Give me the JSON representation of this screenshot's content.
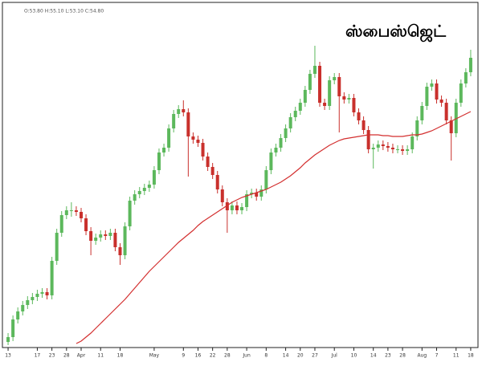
{
  "chart_data": {
    "type": "candlestick",
    "title": "ஸ்பைஸ்ஜெட்",
    "ohlc_readout": "O:53.80 H:55.10 L:53.10 C:54.80",
    "up_color": "#5cb85c",
    "down_color": "#c9302c",
    "open": [
      4,
      10,
      32,
      42,
      50,
      56,
      60,
      64,
      66,
      62,
      105,
      140,
      162,
      168,
      168,
      166,
      158,
      142,
      130,
      134,
      138,
      136,
      140,
      122,
      112,
      148,
      180,
      188,
      192,
      196,
      200,
      218,
      240,
      246,
      270,
      288,
      294,
      290,
      260,
      256,
      252,
      235,
      222,
      212,
      194,
      178,
      168,
      174,
      168,
      172,
      188,
      190,
      185,
      194,
      218,
      240,
      246,
      258,
      270,
      284,
      292,
      302,
      318,
      338,
      348,
      302,
      298,
      330,
      334,
      310,
      306,
      308,
      290,
      280,
      268,
      244,
      246,
      250,
      248,
      246,
      244,
      244,
      242,
      244,
      260,
      280,
      298,
      322,
      326,
      306,
      302,
      280,
      264,
      302,
      326,
      340
    ],
    "high": [
      15,
      37,
      47,
      55,
      61,
      65,
      69,
      71,
      71,
      110,
      145,
      167,
      173,
      178,
      173,
      171,
      163,
      147,
      139,
      143,
      143,
      145,
      145,
      127,
      153,
      185,
      193,
      197,
      201,
      205,
      223,
      245,
      251,
      275,
      293,
      299,
      305,
      295,
      265,
      261,
      257,
      240,
      227,
      217,
      199,
      183,
      179,
      179,
      177,
      193,
      195,
      195,
      199,
      223,
      245,
      251,
      263,
      275,
      289,
      297,
      307,
      323,
      343,
      373,
      353,
      307,
      335,
      339,
      339,
      315,
      313,
      313,
      295,
      285,
      273,
      251,
      255,
      255,
      253,
      251,
      249,
      249,
      249,
      265,
      285,
      303,
      327,
      331,
      331,
      311,
      307,
      285,
      307,
      331,
      345,
      368
    ],
    "low": [
      0,
      5,
      27,
      37,
      45,
      51,
      55,
      59,
      57,
      57,
      100,
      135,
      157,
      160,
      161,
      153,
      137,
      112,
      125,
      129,
      131,
      131,
      117,
      100,
      107,
      143,
      175,
      183,
      187,
      191,
      195,
      213,
      235,
      241,
      265,
      283,
      285,
      210,
      251,
      247,
      230,
      217,
      207,
      189,
      173,
      140,
      163,
      163,
      163,
      167,
      183,
      180,
      180,
      189,
      213,
      235,
      241,
      253,
      265,
      279,
      287,
      297,
      313,
      333,
      297,
      293,
      293,
      325,
      265,
      301,
      301,
      285,
      275,
      263,
      239,
      220,
      241,
      243,
      241,
      239,
      239,
      237,
      237,
      239,
      255,
      275,
      293,
      317,
      301,
      297,
      275,
      230,
      259,
      297,
      321,
      335
    ],
    "close": [
      10,
      32,
      42,
      50,
      56,
      60,
      64,
      66,
      62,
      105,
      140,
      162,
      168,
      168,
      166,
      158,
      142,
      130,
      134,
      138,
      136,
      140,
      122,
      112,
      148,
      180,
      188,
      192,
      196,
      200,
      218,
      240,
      246,
      270,
      288,
      294,
      290,
      260,
      256,
      252,
      235,
      222,
      212,
      194,
      178,
      168,
      174,
      168,
      172,
      188,
      190,
      185,
      194,
      218,
      240,
      246,
      258,
      270,
      284,
      292,
      302,
      318,
      338,
      348,
      302,
      298,
      330,
      334,
      310,
      306,
      308,
      290,
      280,
      268,
      244,
      246,
      250,
      248,
      246,
      244,
      244,
      242,
      244,
      260,
      280,
      298,
      322,
      326,
      306,
      302,
      280,
      264,
      302,
      326,
      340,
      358
    ],
    "moving_average": {
      "color": "#d32f2f",
      "values": [
        null,
        null,
        null,
        null,
        null,
        null,
        null,
        null,
        null,
        null,
        null,
        null,
        null,
        null,
        2,
        5,
        10,
        15,
        21,
        27,
        33,
        39,
        45,
        51,
        57,
        64,
        71,
        78,
        85,
        92,
        98,
        104,
        110,
        116,
        122,
        128,
        133,
        138,
        143,
        149,
        154,
        158,
        162,
        166,
        170,
        174,
        178,
        181,
        184,
        186,
        188,
        190,
        192,
        194,
        197,
        200,
        203,
        207,
        211,
        216,
        221,
        227,
        232,
        237,
        241,
        245,
        249,
        252,
        255,
        257,
        258,
        259,
        260,
        261,
        262,
        262,
        262,
        261,
        261,
        260,
        260,
        260,
        261,
        262,
        262,
        263,
        265,
        267,
        270,
        273,
        276,
        279,
        282,
        285,
        288,
        291
      ]
    },
    "ylim": [
      0,
      420
    ],
    "xlim": [
      -1,
      96
    ],
    "xticks": [
      {
        "value": 0,
        "label": "13"
      },
      {
        "value": 6,
        "label": "17"
      },
      {
        "value": 9,
        "label": "23"
      },
      {
        "value": 12,
        "label": "28"
      },
      {
        "value": 15,
        "label": "Apr"
      },
      {
        "value": 19,
        "label": "11"
      },
      {
        "value": 23,
        "label": "18"
      },
      {
        "value": 30,
        "label": "May"
      },
      {
        "value": 36,
        "label": "9"
      },
      {
        "value": 39,
        "label": "16"
      },
      {
        "value": 42,
        "label": "22"
      },
      {
        "value": 45,
        "label": "28"
      },
      {
        "value": 49,
        "label": "Jun"
      },
      {
        "value": 53,
        "label": "8"
      },
      {
        "value": 57,
        "label": "14"
      },
      {
        "value": 60,
        "label": "20"
      },
      {
        "value": 63,
        "label": "27"
      },
      {
        "value": 67,
        "label": "Jul"
      },
      {
        "value": 71,
        "label": "10"
      },
      {
        "value": 75,
        "label": "14"
      },
      {
        "value": 78,
        "label": "23"
      },
      {
        "value": 81,
        "label": "28"
      },
      {
        "value": 85,
        "label": "Aug"
      },
      {
        "value": 88,
        "label": "7"
      },
      {
        "value": 92,
        "label": "11"
      },
      {
        "value": 95,
        "label": "18"
      }
    ]
  }
}
